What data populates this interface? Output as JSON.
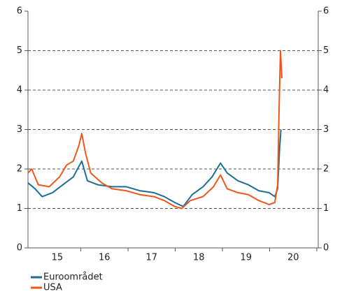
{
  "chart_data": {
    "type": "line",
    "xlim": [
      14.88,
      21.03
    ],
    "xticks": [
      {
        "value": 15.5,
        "label": "15"
      },
      {
        "value": 16.5,
        "label": "16"
      },
      {
        "value": 17.5,
        "label": "17"
      },
      {
        "value": 18.5,
        "label": "18"
      },
      {
        "value": 19.5,
        "label": "19"
      },
      {
        "value": 20.5,
        "label": "20"
      }
    ],
    "x_tick_marks": [
      16,
      17,
      18,
      19,
      20,
      21
    ],
    "ylim": [
      0,
      6
    ],
    "yticks": [
      0,
      1,
      2,
      3,
      4,
      5,
      6
    ],
    "grid": true,
    "right_axis": true,
    "legend": "bottom-left",
    "series": [
      {
        "name": "Euroområdet",
        "color": "#1b6f97",
        "x": [
          14.88,
          15.03,
          15.18,
          15.4,
          15.62,
          15.84,
          16.02,
          16.14,
          16.36,
          16.66,
          16.96,
          17.25,
          17.55,
          17.77,
          17.99,
          18.17,
          18.36,
          18.59,
          18.78,
          18.96,
          19.1,
          19.33,
          19.55,
          19.77,
          19.99,
          20.11,
          20.17,
          20.21,
          20.24
        ],
        "values": [
          1.65,
          1.5,
          1.3,
          1.4,
          1.6,
          1.8,
          2.2,
          1.7,
          1.6,
          1.55,
          1.55,
          1.45,
          1.4,
          1.3,
          1.15,
          1.05,
          1.35,
          1.55,
          1.8,
          2.15,
          1.9,
          1.7,
          1.6,
          1.45,
          1.4,
          1.3,
          1.5,
          2.5,
          3.0
        ]
      },
      {
        "name": "USA",
        "color": "#f0561c",
        "x": [
          14.88,
          14.96,
          15.1,
          15.33,
          15.55,
          15.7,
          15.84,
          15.96,
          16.02,
          16.1,
          16.21,
          16.44,
          16.66,
          16.96,
          17.25,
          17.55,
          17.77,
          17.99,
          18.14,
          18.32,
          18.59,
          18.81,
          18.96,
          19.1,
          19.33,
          19.55,
          19.77,
          19.99,
          20.11,
          20.17,
          20.2,
          20.23,
          20.26
        ],
        "values": [
          1.9,
          2.0,
          1.6,
          1.55,
          1.8,
          2.1,
          2.2,
          2.6,
          2.9,
          2.4,
          1.9,
          1.65,
          1.5,
          1.45,
          1.35,
          1.3,
          1.2,
          1.05,
          1.0,
          1.2,
          1.3,
          1.55,
          1.85,
          1.5,
          1.4,
          1.35,
          1.2,
          1.1,
          1.15,
          1.6,
          3.5,
          5.0,
          4.3
        ]
      }
    ]
  }
}
